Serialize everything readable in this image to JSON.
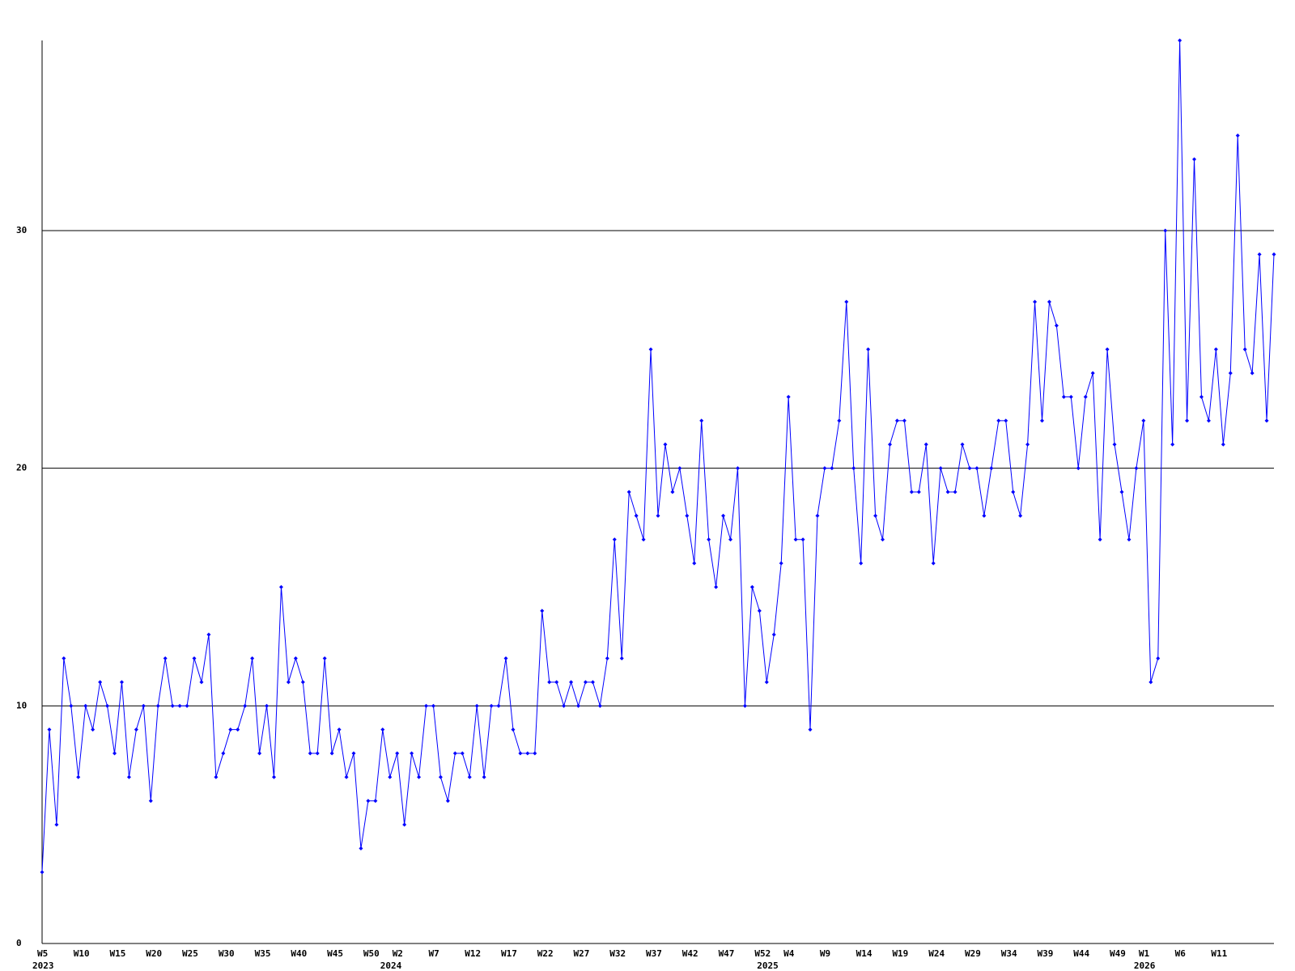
{
  "chart_data": {
    "type": "line",
    "categories": [
      "W5",
      null,
      null,
      null,
      null,
      "W10",
      null,
      null,
      null,
      null,
      "W15",
      null,
      null,
      null,
      null,
      "W20",
      null,
      null,
      null,
      null,
      "W25",
      null,
      null,
      null,
      null,
      "W30",
      null,
      null,
      null,
      null,
      "W35",
      null,
      null,
      null,
      null,
      "W40",
      null,
      null,
      null,
      null,
      "W45",
      null,
      null,
      null,
      null,
      "W50",
      null,
      null,
      null,
      "W2",
      null,
      null,
      null,
      null,
      "W7",
      null,
      null,
      null,
      null,
      "W12",
      null,
      null,
      null,
      null,
      "W17",
      null,
      null,
      null,
      null,
      "W22",
      null,
      null,
      null,
      null,
      "W27",
      null,
      null,
      null,
      null,
      "W32",
      null,
      null,
      null,
      null,
      "W37",
      null,
      null,
      null,
      null,
      "W42",
      null,
      null,
      null,
      null,
      "W47",
      null,
      null,
      null,
      null,
      "W52",
      null,
      null,
      null,
      "W4",
      null,
      null,
      null,
      null,
      "W9",
      null,
      null,
      null,
      null,
      "W14",
      null,
      null,
      null,
      null,
      "W19",
      null,
      null,
      null,
      null,
      "W24",
      null,
      null,
      null,
      null,
      "W29",
      null,
      null,
      null,
      null,
      "W34",
      null,
      null,
      null,
      null,
      "W39",
      null,
      null,
      null,
      null,
      "W44",
      null,
      null,
      null,
      null,
      "W49",
      null,
      null,
      null,
      "W1",
      null,
      null,
      null,
      null,
      "W6",
      null,
      null,
      null,
      null,
      "W11",
      null,
      null,
      null,
      null,
      null,
      null,
      null,
      null
    ],
    "year_labels": [
      "2023",
      null,
      null,
      null,
      null,
      null,
      null,
      null,
      null,
      null,
      null,
      null,
      null,
      null,
      null,
      null,
      null,
      null,
      null,
      null,
      null,
      null,
      null,
      null,
      null,
      null,
      null,
      null,
      null,
      null,
      null,
      null,
      null,
      null,
      null,
      null,
      null,
      null,
      null,
      null,
      null,
      null,
      null,
      null,
      null,
      null,
      null,
      null,
      "2024",
      null,
      null,
      null,
      null,
      null,
      null,
      null,
      null,
      null,
      null,
      null,
      null,
      null,
      null,
      null,
      null,
      null,
      null,
      null,
      null,
      null,
      null,
      null,
      null,
      null,
      null,
      null,
      null,
      null,
      null,
      null,
      null,
      null,
      null,
      null,
      null,
      null,
      null,
      null,
      null,
      null,
      null,
      null,
      null,
      null,
      null,
      null,
      null,
      null,
      null,
      null,
      "2025",
      null,
      null,
      null,
      null,
      null,
      null,
      null,
      null,
      null,
      null,
      null,
      null,
      null,
      null,
      null,
      null,
      null,
      null,
      null,
      null,
      null,
      null,
      null,
      null,
      null,
      null,
      null,
      null,
      null,
      null,
      null,
      null,
      null,
      null,
      null,
      null,
      null,
      null,
      null,
      null,
      null,
      null,
      null,
      null,
      null,
      null,
      null,
      null,
      null,
      null,
      null,
      "2026",
      null,
      null,
      null,
      null,
      null,
      null,
      null,
      null,
      null,
      null,
      null,
      null,
      null,
      null,
      null,
      null,
      null,
      null
    ],
    "series": [
      {
        "color": "#0000ff",
        "values": [
          3,
          9,
          5,
          12,
          10,
          7,
          10,
          9,
          11,
          10,
          8,
          11,
          7,
          9,
          10,
          6,
          10,
          12,
          10,
          10,
          10,
          12,
          11,
          13,
          7,
          8,
          9,
          9,
          10,
          12,
          8,
          10,
          7,
          15,
          11,
          12,
          11,
          8,
          8,
          12,
          8,
          9,
          7,
          8,
          4,
          6,
          6,
          9,
          7,
          8,
          5,
          8,
          7,
          10,
          10,
          7,
          6,
          8,
          8,
          7,
          10,
          7,
          10,
          10,
          12,
          9,
          8,
          8,
          8,
          14,
          11,
          11,
          10,
          11,
          10,
          11,
          11,
          10,
          12,
          17,
          12,
          19,
          18,
          17,
          25,
          18,
          21,
          19,
          20,
          18,
          16,
          22,
          17,
          15,
          18,
          17,
          20,
          10,
          15,
          14,
          11,
          13,
          16,
          23,
          17,
          17,
          9,
          18,
          20,
          20,
          22,
          27,
          20,
          16,
          25,
          18,
          17,
          21,
          22,
          22,
          19,
          19,
          21,
          16,
          20,
          19,
          19,
          21,
          20,
          20,
          18,
          20,
          22,
          22,
          19,
          18,
          21,
          27,
          22,
          27,
          26,
          23,
          23,
          20,
          23,
          24,
          17,
          25,
          21,
          19,
          17,
          20,
          22,
          11,
          12,
          30,
          21,
          38,
          22,
          33,
          23,
          22,
          25,
          21,
          24,
          34,
          25,
          24,
          29,
          22,
          29
        ]
      }
    ],
    "ylim": [
      0,
      38
    ],
    "yticks": [
      0,
      10,
      20,
      30
    ],
    "grid": true,
    "grid_color": "#000000"
  }
}
